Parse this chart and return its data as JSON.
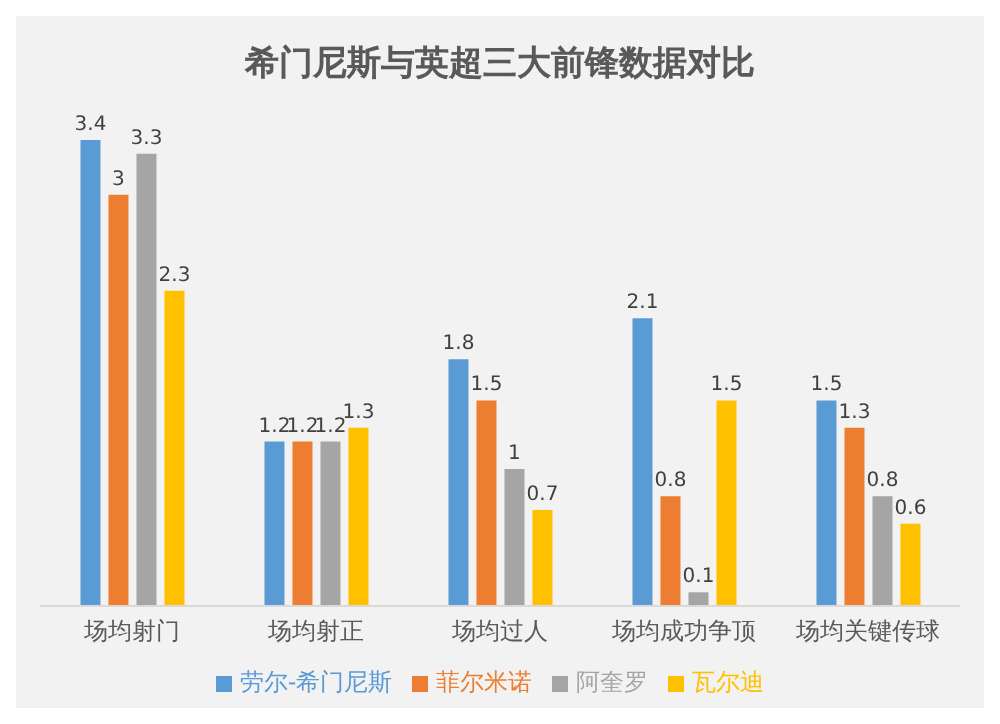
{
  "chart_data": {
    "type": "bar",
    "title": "希门尼斯与英超三大前锋数据对比",
    "categories": [
      "场均射门",
      "场均射正",
      "场均过人",
      "场均成功争顶",
      "场均关键传球"
    ],
    "series": [
      {
        "name": "劳尔-希门尼斯",
        "color": "#5b9bd5",
        "values": [
          3.4,
          1.2,
          1.8,
          2.1,
          1.5
        ]
      },
      {
        "name": "菲尔米诺",
        "color": "#ed7d31",
        "values": [
          3,
          1.2,
          1.5,
          0.8,
          1.3
        ]
      },
      {
        "name": "阿奎罗",
        "color": "#a5a5a5",
        "values": [
          3.3,
          1.2,
          1,
          0.1,
          0.8
        ]
      },
      {
        "name": "瓦尔迪",
        "color": "#ffc000",
        "values": [
          2.3,
          1.3,
          0.7,
          1.5,
          0.6
        ]
      }
    ],
    "data_labels": true,
    "legend": "bottom",
    "grid": false
  }
}
